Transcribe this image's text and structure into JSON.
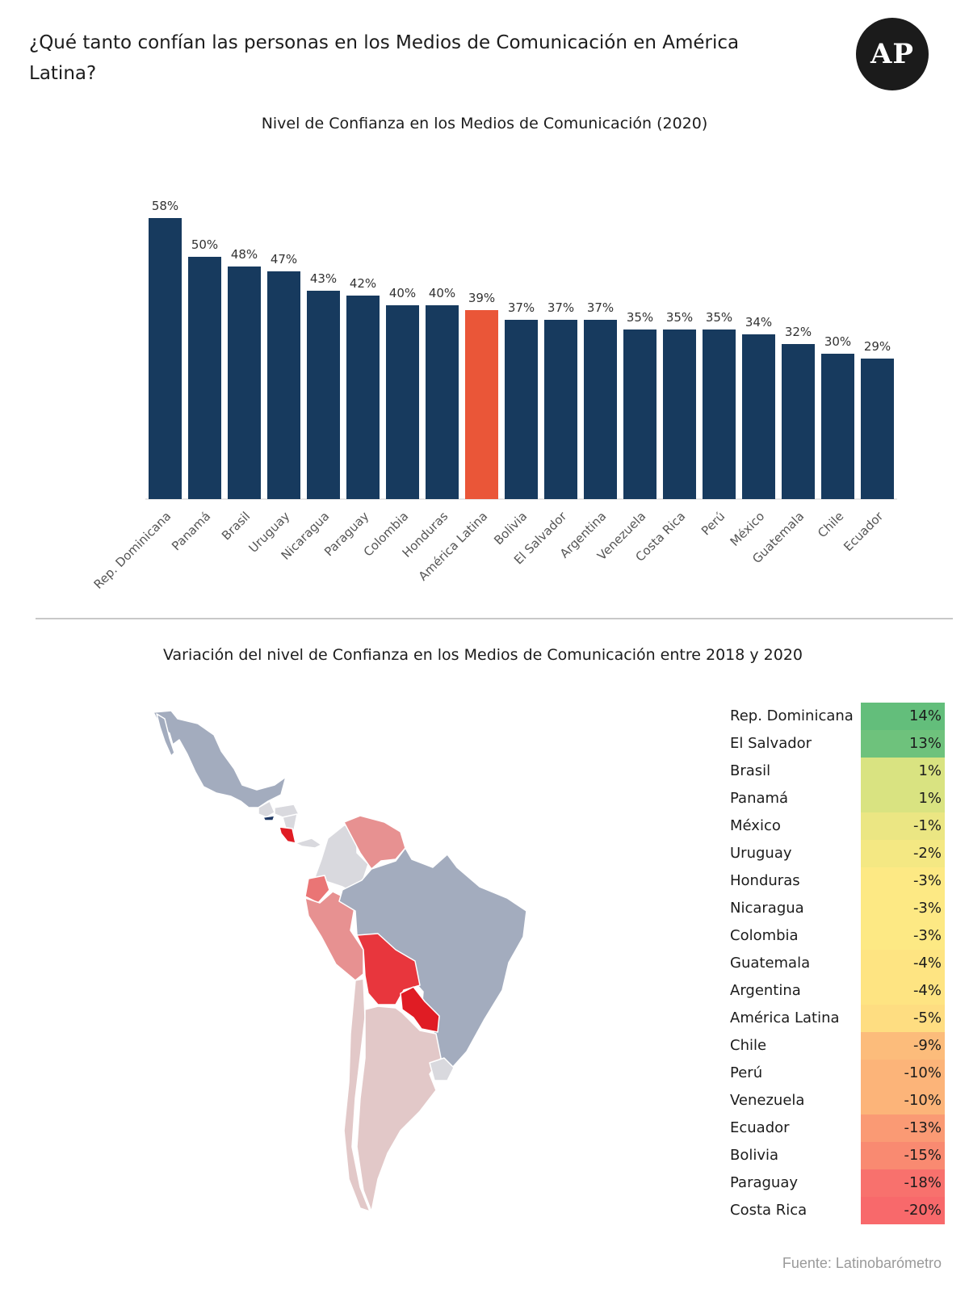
{
  "header": {
    "title": "¿Qué tanto confían las personas en los Medios de Comunicación en América Latina?",
    "logo_text": "AP"
  },
  "chart_data": [
    {
      "type": "bar",
      "title": "Nivel de Confianza en los Medios de Comunicación (2020)",
      "categories": [
        "Rep. Dominicana",
        "Panamá",
        "Brasil",
        "Uruguay",
        "Nicaragua",
        "Paraguay",
        "Colombia",
        "Honduras",
        "América Latina",
        "Bolivia",
        "El Salvador",
        "Argentina",
        "Venezuela",
        "Costa Rica",
        "Perú",
        "México",
        "Guatemala",
        "Chile",
        "Ecuador"
      ],
      "values": [
        58,
        50,
        48,
        47,
        43,
        42,
        40,
        40,
        39,
        37,
        37,
        37,
        35,
        35,
        35,
        34,
        32,
        30,
        29
      ],
      "value_labels": [
        "58%",
        "50%",
        "48%",
        "47%",
        "43%",
        "42%",
        "40%",
        "40%",
        "39%",
        "37%",
        "37%",
        "37%",
        "35%",
        "35%",
        "35%",
        "34%",
        "32%",
        "30%",
        "29%"
      ],
      "highlight": "América Latina",
      "ylim": [
        0,
        60
      ],
      "grid": false,
      "colors": {
        "bar": "#173a5e",
        "highlight": "#ea5638"
      }
    },
    {
      "type": "table",
      "title": "Variación del nivel de Confianza en los Medios de Comunicación entre 2018 y 2020",
      "rows": [
        {
          "label": "Rep. Dominicana",
          "value": "14%",
          "color": "#63be7b"
        },
        {
          "label": "El Salvador",
          "value": "13%",
          "color": "#6ec27c"
        },
        {
          "label": "Brasil",
          "value": "1%",
          "color": "#d9e381"
        },
        {
          "label": "Panamá",
          "value": "1%",
          "color": "#d9e381"
        },
        {
          "label": "México",
          "value": "-1%",
          "color": "#ebe683"
        },
        {
          "label": "Uruguay",
          "value": "-2%",
          "color": "#f4e883"
        },
        {
          "label": "Honduras",
          "value": "-3%",
          "color": "#fde984"
        },
        {
          "label": "Nicaragua",
          "value": "-3%",
          "color": "#fde984"
        },
        {
          "label": "Colombia",
          "value": "-3%",
          "color": "#fde984"
        },
        {
          "label": "Guatemala",
          "value": "-4%",
          "color": "#fee482"
        },
        {
          "label": "Argentina",
          "value": "-4%",
          "color": "#fee482"
        },
        {
          "label": "América Latina",
          "value": "-5%",
          "color": "#fedd81"
        },
        {
          "label": "Chile",
          "value": "-9%",
          "color": "#fcbc7b"
        },
        {
          "label": "Perú",
          "value": "-10%",
          "color": "#fcb479"
        },
        {
          "label": "Venezuela",
          "value": "-10%",
          "color": "#fcb479"
        },
        {
          "label": "Ecuador",
          "value": "-13%",
          "color": "#fa9a74"
        },
        {
          "label": "Bolivia",
          "value": "-15%",
          "color": "#f98a71"
        },
        {
          "label": "Paraguay",
          "value": "-18%",
          "color": "#f8716d"
        },
        {
          "label": "Costa Rica",
          "value": "-20%",
          "color": "#f8696b"
        }
      ]
    }
  ],
  "map": {
    "colors": {
      "gray": "#a3acbe",
      "light_gray": "#d9d9de",
      "light_pink": "#e2c8c8",
      "pink": "#e79191",
      "salmon": "#ea7575",
      "red": "#e8363d",
      "deep_red": "#e01c24",
      "navy": "#1f3864",
      "border": "#ffffff"
    }
  },
  "footer": {
    "source": "Fuente: Latinobarómetro"
  }
}
